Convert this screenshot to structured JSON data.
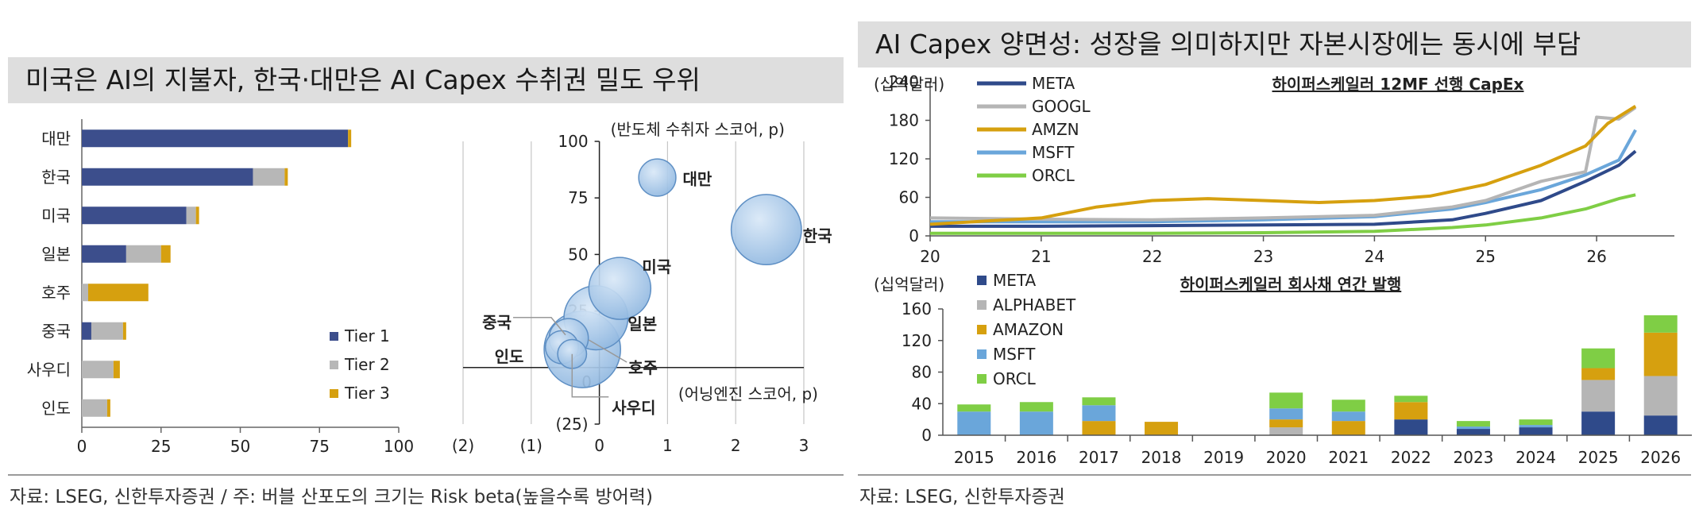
{
  "left": {
    "title": "미국은 AI의 지불자, 한국·대만은 AI Capex 수취권 밀도 우위",
    "source": "자료: LSEG, 신한투자증권 / 주: 버블 산포도의 크기는 Risk beta(높을수록 방어력)"
  },
  "right": {
    "title": "AI Capex 양면성: 성장을 의미하지만 자본시장에는 동시에 부담",
    "source": "자료: LSEG, 신한투자증권"
  },
  "colors": {
    "tier1": "#3c4e8c",
    "tier2": "#b7b7b7",
    "tier3": "#d6a00f",
    "meta": "#2f4a8a",
    "googl": "#b5b5b5",
    "amzn": "#d6a00f",
    "msft": "#6aa6da",
    "orcl": "#7fce45",
    "bubble": "#8fb7e0"
  },
  "chart_data": [
    {
      "type": "bar",
      "orientation": "horizontal-stacked",
      "categories": [
        "대만",
        "한국",
        "미국",
        "일본",
        "호주",
        "중국",
        "사우디",
        "인도"
      ],
      "series": [
        {
          "name": "Tier 1",
          "values": [
            84,
            54,
            33,
            14,
            0,
            3,
            0,
            0
          ]
        },
        {
          "name": "Tier 2",
          "values": [
            0,
            10,
            3,
            11,
            2,
            10,
            10,
            8
          ]
        },
        {
          "name": "Tier 3",
          "values": [
            1,
            1,
            1,
            3,
            19,
            1,
            2,
            1
          ]
        }
      ],
      "xlim": [
        0,
        100
      ],
      "xticks": [
        "0",
        "25",
        "50",
        "75",
        "100"
      ],
      "legend": "bottom-right"
    },
    {
      "type": "scatter",
      "bubble": true,
      "xlabel": "(어닝엔진 스코어, p)",
      "ylabel": "(반도체 수취자 스코어, p)",
      "xlim": [
        -2,
        3
      ],
      "ylim": [
        -25,
        100
      ],
      "xticks": [
        "(2)",
        "(1)",
        "0",
        "1",
        "2",
        "3"
      ],
      "yticks": [
        "(25)",
        "0",
        "25",
        "50",
        "75",
        "100"
      ],
      "points": [
        {
          "label": "대만",
          "x": 0.85,
          "y": 84,
          "size": 0.9
        },
        {
          "label": "한국",
          "x": 2.45,
          "y": 61,
          "size": 1.7
        },
        {
          "label": "미국",
          "x": 0.3,
          "y": 35,
          "size": 1.5
        },
        {
          "label": "일본",
          "x": -0.05,
          "y": 22,
          "size": 1.55
        },
        {
          "label": "중국",
          "x": -0.45,
          "y": 13,
          "size": 0.95
        },
        {
          "label": "인도",
          "x": -0.55,
          "y": 9,
          "size": 0.8
        },
        {
          "label": "호주",
          "x": -0.25,
          "y": 8,
          "size": 1.85
        },
        {
          "label": "사우디",
          "x": -0.4,
          "y": 6,
          "size": 0.7
        }
      ]
    },
    {
      "type": "line",
      "title": "하이퍼스케일러 12MF 선행 CapEx",
      "ylabel": "(십억달러)",
      "xlim": [
        20,
        26.7
      ],
      "ylim": [
        0,
        240
      ],
      "xticks": [
        "20",
        "21",
        "22",
        "23",
        "24",
        "25",
        "26"
      ],
      "yticks": [
        "0",
        "60",
        "120",
        "180",
        "240"
      ],
      "legend": "top-left",
      "series": [
        {
          "name": "META",
          "points": [
            [
              20,
              15
            ],
            [
              21,
              15
            ],
            [
              22,
              16
            ],
            [
              23,
              17
            ],
            [
              24,
              18
            ],
            [
              24.7,
              25
            ],
            [
              25,
              35
            ],
            [
              25.5,
              55
            ],
            [
              25.9,
              85
            ],
            [
              26.2,
              110
            ],
            [
              26.35,
              132
            ]
          ]
        },
        {
          "name": "GOOGL",
          "points": [
            [
              20,
              28
            ],
            [
              21,
              26
            ],
            [
              22,
              25
            ],
            [
              23,
              28
            ],
            [
              24,
              32
            ],
            [
              24.7,
              45
            ],
            [
              25,
              55
            ],
            [
              25.5,
              85
            ],
            [
              25.9,
              100
            ],
            [
              26.0,
              185
            ],
            [
              26.2,
              182
            ],
            [
              26.35,
              200
            ]
          ]
        },
        {
          "name": "AMZN",
          "points": [
            [
              20,
              18
            ],
            [
              21,
              28
            ],
            [
              21.5,
              45
            ],
            [
              22,
              55
            ],
            [
              22.5,
              58
            ],
            [
              23,
              55
            ],
            [
              23.5,
              52
            ],
            [
              24,
              55
            ],
            [
              24.5,
              62
            ],
            [
              25,
              80
            ],
            [
              25.5,
              110
            ],
            [
              25.9,
              140
            ],
            [
              26.1,
              175
            ],
            [
              26.35,
              202
            ]
          ]
        },
        {
          "name": "MSFT",
          "points": [
            [
              20,
              22
            ],
            [
              21,
              22
            ],
            [
              22,
              22
            ],
            [
              23,
              25
            ],
            [
              24,
              30
            ],
            [
              24.7,
              42
            ],
            [
              25,
              52
            ],
            [
              25.5,
              72
            ],
            [
              25.9,
              95
            ],
            [
              26.2,
              118
            ],
            [
              26.35,
              165
            ]
          ]
        },
        {
          "name": "ORCL",
          "points": [
            [
              20,
              4
            ],
            [
              21,
              4
            ],
            [
              22,
              4
            ],
            [
              23,
              5
            ],
            [
              24,
              7
            ],
            [
              24.7,
              13
            ],
            [
              25,
              17
            ],
            [
              25.5,
              28
            ],
            [
              25.9,
              42
            ],
            [
              26.2,
              58
            ],
            [
              26.35,
              64
            ]
          ]
        }
      ]
    },
    {
      "type": "bar",
      "orientation": "vertical-stacked",
      "title": "하이퍼스케일러 회사채 연간 발행",
      "ylabel": "(십억달러)",
      "ylim": [
        0,
        160
      ],
      "yticks": [
        "0",
        "40",
        "80",
        "120",
        "160"
      ],
      "legend": "top-left",
      "categories": [
        "2015",
        "2016",
        "2017",
        "2018",
        "2019",
        "2020",
        "2021",
        "2022",
        "2023",
        "2024",
        "2025",
        "2026"
      ],
      "series": [
        {
          "name": "META",
          "values": [
            0,
            0,
            0,
            0,
            0,
            0,
            0,
            20,
            8,
            10,
            30,
            25
          ]
        },
        {
          "name": "ALPHABET",
          "values": [
            0,
            0,
            0,
            0,
            0,
            10,
            0,
            0,
            0,
            0,
            40,
            50
          ]
        },
        {
          "name": "AMAZON",
          "values": [
            0,
            0,
            18,
            17,
            0,
            10,
            18,
            22,
            0,
            0,
            15,
            55
          ]
        },
        {
          "name": "MSFT",
          "values": [
            30,
            30,
            20,
            0,
            0,
            14,
            12,
            0,
            3,
            3,
            0,
            0
          ]
        },
        {
          "name": "ORCL",
          "values": [
            9,
            12,
            10,
            0,
            0,
            20,
            15,
            8,
            7,
            7,
            25,
            22
          ]
        }
      ]
    }
  ]
}
